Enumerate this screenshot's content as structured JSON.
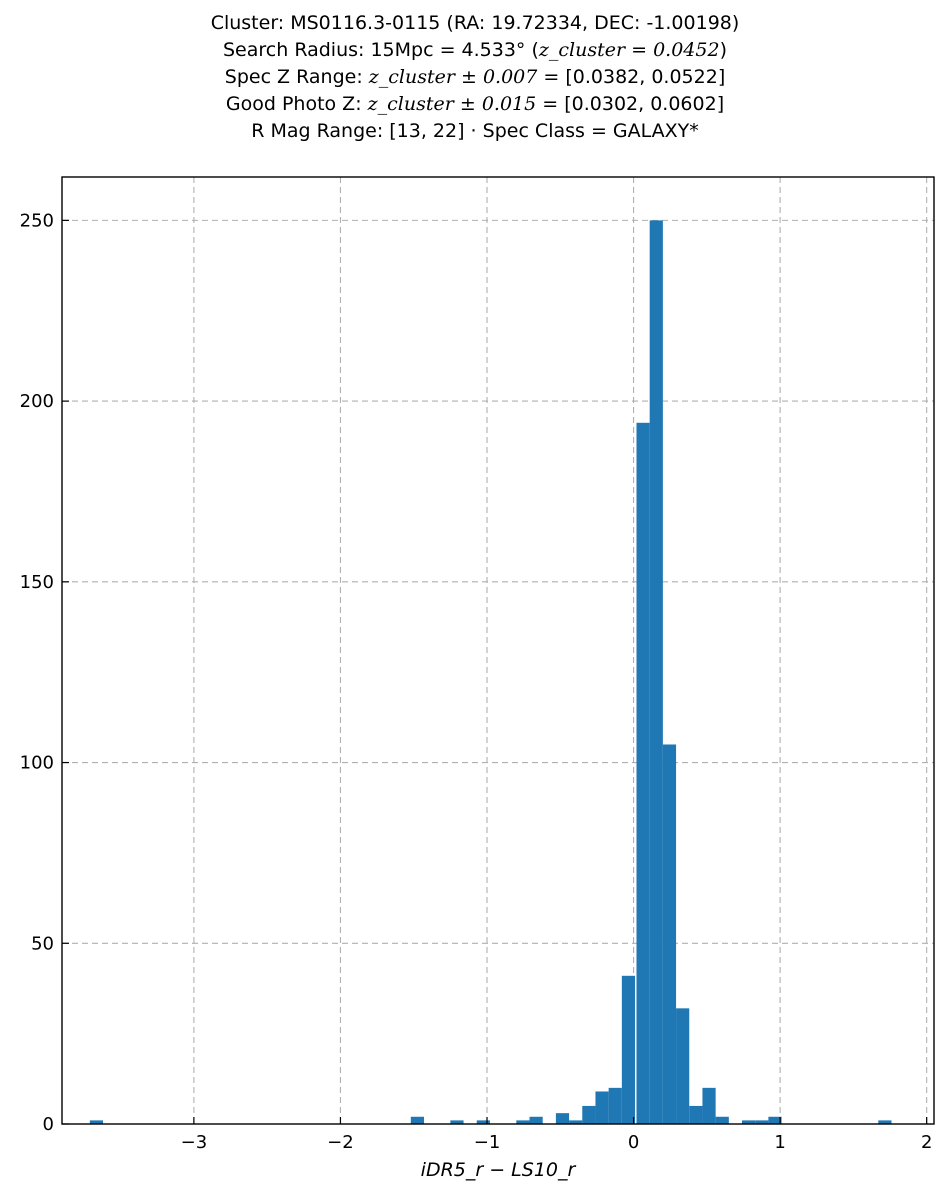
{
  "chart_data": {
    "type": "bar",
    "title_lines": [
      {
        "pre": "Cluster: MS0116.3-0115 (RA: 19.72334, DEC: -1.00198)",
        "math": "",
        "post": ""
      },
      {
        "pre": "Search Radius: 15Mpc = 4.533° (",
        "math": "z_cluster = 0.0452",
        "post": ")"
      },
      {
        "pre": "Spec Z Range: ",
        "math": "z_cluster ± 0.007",
        "post": " = [0.0382, 0.0522]"
      },
      {
        "pre": "Good Photo Z: ",
        "math": "z_cluster ± 0.015",
        "post": " = [0.0302, 0.0602]"
      },
      {
        "pre": "R Mag Range: [13, 22] · Spec Class = GALAXY*",
        "math": "",
        "post": ""
      }
    ],
    "xlabel": "iDR5_r − LS10_r",
    "ylabel": "",
    "xlim": [
      -3.9,
      2.05
    ],
    "ylim": [
      0,
      262
    ],
    "xticks": [
      -3,
      -2,
      -1,
      0,
      1,
      2
    ],
    "xtick_labels": [
      "−3",
      "−2",
      "−1",
      "0",
      "1",
      "2"
    ],
    "yticks": [
      0,
      50,
      100,
      150,
      200,
      250
    ],
    "ytick_labels": [
      "0",
      "50",
      "100",
      "150",
      "200",
      "250"
    ],
    "grid": true,
    "bar_color": "#1f77b4",
    "bin_width": 0.09,
    "bins": [
      {
        "x0": -3.71,
        "count": 1
      },
      {
        "x0": -1.52,
        "count": 2
      },
      {
        "x0": -1.25,
        "count": 1
      },
      {
        "x0": -1.07,
        "count": 1
      },
      {
        "x0": -0.8,
        "count": 1
      },
      {
        "x0": -0.71,
        "count": 2
      },
      {
        "x0": -0.53,
        "count": 3
      },
      {
        "x0": -0.44,
        "count": 1
      },
      {
        "x0": -0.35,
        "count": 5
      },
      {
        "x0": -0.26,
        "count": 9
      },
      {
        "x0": -0.17,
        "count": 10
      },
      {
        "x0": -0.08,
        "count": 41
      },
      {
        "x0": 0.02,
        "count": 194
      },
      {
        "x0": 0.11,
        "count": 250
      },
      {
        "x0": 0.2,
        "count": 105
      },
      {
        "x0": 0.29,
        "count": 32
      },
      {
        "x0": 0.38,
        "count": 5
      },
      {
        "x0": 0.47,
        "count": 10
      },
      {
        "x0": 0.56,
        "count": 2
      },
      {
        "x0": 0.74,
        "count": 1
      },
      {
        "x0": 0.83,
        "count": 1
      },
      {
        "x0": 0.92,
        "count": 2
      },
      {
        "x0": 1.67,
        "count": 1
      }
    ]
  }
}
